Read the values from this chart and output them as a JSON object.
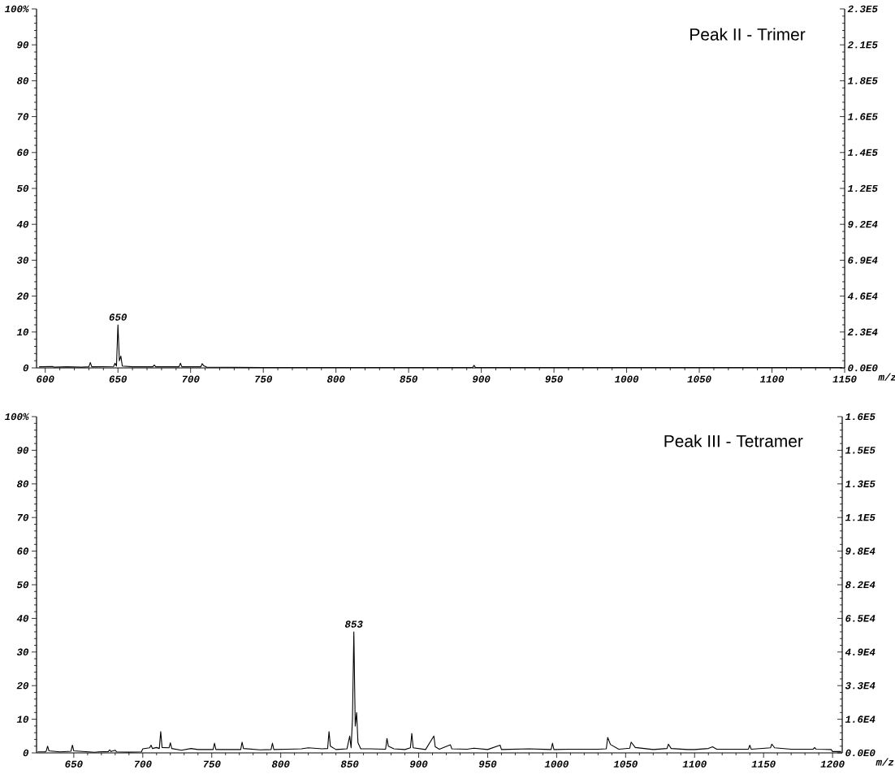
{
  "chart_data": [
    {
      "type": "line",
      "title": "Peak II - Trimer",
      "xlabel": "m/z",
      "color": "#000000",
      "x": [
        596,
        605,
        606,
        615,
        625,
        630,
        631,
        632,
        647,
        648,
        649,
        650,
        651,
        652,
        653,
        660,
        674,
        675,
        676,
        692,
        693,
        694,
        707,
        708,
        709,
        711,
        750,
        800,
        850,
        894,
        895,
        896,
        950,
        1000,
        1050,
        1100,
        1148
      ],
      "values": [
        0.3,
        0.4,
        0.2,
        0.3,
        0.2,
        0.3,
        1.5,
        0.3,
        0.4,
        1.3,
        0.5,
        12,
        2,
        3.3,
        0.5,
        0.3,
        0.3,
        0.8,
        0.3,
        0.3,
        1.3,
        0.3,
        0.3,
        1.2,
        0.6,
        0.2,
        0.1,
        0.1,
        0.1,
        0.1,
        0.7,
        0.1,
        0.1,
        0.1,
        0.1,
        0.1,
        0.1
      ],
      "annotations": [
        {
          "text": "650",
          "x": 650,
          "y": 12
        }
      ],
      "xlim": [
        594,
        1150
      ],
      "xticks": [
        600,
        650,
        700,
        750,
        800,
        850,
        900,
        950,
        1000,
        1050,
        1100,
        1150
      ],
      "ylim": [
        0,
        100
      ],
      "yticks": [
        0,
        10,
        20,
        30,
        40,
        50,
        60,
        70,
        80,
        90,
        {
          "value": 100,
          "label": "100%"
        }
      ],
      "y2lim": [
        0,
        230000
      ],
      "y2ticks": [
        {
          "value": 0,
          "label": "0.0E0"
        },
        {
          "value": 23000,
          "label": "2.3E4"
        },
        {
          "value": 46000,
          "label": "4.6E4"
        },
        {
          "value": 69000,
          "label": "6.9E4"
        },
        {
          "value": 92000,
          "label": "9.2E4"
        },
        {
          "value": 115000,
          "label": "1.2E5"
        },
        {
          "value": 138000,
          "label": "1.4E5"
        },
        {
          "value": 161000,
          "label": "1.6E5"
        },
        {
          "value": 184000,
          "label": "1.8E5"
        },
        {
          "value": 207000,
          "label": "2.1E5"
        },
        {
          "value": 230000,
          "label": "2.3E5"
        }
      ]
    },
    {
      "type": "line",
      "title": "Peak III - Tetramer",
      "xlabel": "m/z",
      "color": "#000000",
      "x": [
        624,
        629,
        630,
        631,
        632,
        640,
        648,
        649,
        650,
        665,
        668,
        675,
        676,
        677,
        680,
        681,
        690,
        699,
        700,
        705,
        706,
        707,
        710,
        712,
        713,
        714,
        719,
        720,
        721,
        728,
        735,
        740,
        751,
        752,
        753,
        765,
        771,
        772,
        773,
        785,
        793,
        794,
        795,
        805,
        815,
        820,
        830,
        834,
        835,
        836,
        840,
        848,
        850,
        851,
        852,
        853,
        854,
        855,
        856,
        858,
        865,
        876,
        877,
        878,
        882,
        890,
        894,
        895,
        896,
        905,
        911,
        912,
        915,
        923,
        924,
        935,
        940,
        950,
        959,
        960,
        980,
        996,
        997,
        998,
        1010,
        1030,
        1036,
        1037,
        1039,
        1045,
        1053,
        1054,
        1057,
        1070,
        1080,
        1081,
        1083,
        1095,
        1100,
        1110,
        1113,
        1116,
        1139,
        1140,
        1141,
        1155,
        1156,
        1158,
        1170,
        1186,
        1187,
        1188,
        1199,
        1200,
        1206
      ],
      "values": [
        0.3,
        0.3,
        0.5,
        2,
        0.6,
        0.3,
        0.5,
        2.3,
        0.6,
        0.2,
        0.3,
        0.4,
        0.9,
        0.4,
        0.8,
        0.3,
        0.2,
        0.3,
        1.2,
        1.5,
        2.3,
        1.3,
        1.6,
        1.3,
        6.3,
        1.6,
        1.5,
        3,
        1.3,
        0.8,
        1.3,
        1,
        1,
        2.9,
        1,
        1,
        1,
        3.2,
        1.3,
        0.9,
        1,
        2.9,
        1,
        1.1,
        1.2,
        1.5,
        1.2,
        1.3,
        6.3,
        2,
        1,
        1.2,
        5,
        1.5,
        10,
        36,
        8,
        12,
        3,
        1.2,
        1.2,
        1.1,
        4.3,
        2,
        1.2,
        1,
        1.5,
        5.8,
        1.5,
        1,
        5,
        1.8,
        1.1,
        2.4,
        1.2,
        1.1,
        1.4,
        1,
        2.3,
        1,
        1.2,
        1,
        2.9,
        1,
        1.1,
        1.1,
        1.2,
        4.6,
        2.5,
        1.1,
        1.4,
        3.2,
        1.6,
        1,
        1.3,
        2.6,
        1.3,
        1,
        1,
        1.3,
        1.8,
        1.1,
        1.1,
        2.3,
        1.1,
        1.5,
        2.6,
        1.5,
        1.1,
        1.1,
        1.6,
        1.1,
        1,
        0.4,
        0.4
      ],
      "annotations": [
        {
          "text": "853",
          "x": 853,
          "y": 36
        }
      ],
      "xlim": [
        623,
        1207
      ],
      "xticks": [
        650,
        700,
        750,
        800,
        850,
        900,
        950,
        1000,
        1050,
        1100,
        1150,
        1200
      ],
      "ylim": [
        0,
        100
      ],
      "yticks": [
        0,
        10,
        20,
        30,
        40,
        50,
        60,
        70,
        80,
        90,
        {
          "value": 100,
          "label": "100%"
        }
      ],
      "y2lim": [
        0,
        163000
      ],
      "y2ticks": [
        {
          "value": 0,
          "label": "0.0E0"
        },
        {
          "value": 16300,
          "label": "1.6E4"
        },
        {
          "value": 32600,
          "label": "3.3E4"
        },
        {
          "value": 48900,
          "label": "4.9E4"
        },
        {
          "value": 65200,
          "label": "6.5E4"
        },
        {
          "value": 81500,
          "label": "8.2E4"
        },
        {
          "value": 97800,
          "label": "9.8E4"
        },
        {
          "value": 114100,
          "label": "1.1E5"
        },
        {
          "value": 130400,
          "label": "1.3E5"
        },
        {
          "value": 146700,
          "label": "1.5E5"
        },
        {
          "value": 163000,
          "label": "1.6E5"
        }
      ]
    }
  ]
}
